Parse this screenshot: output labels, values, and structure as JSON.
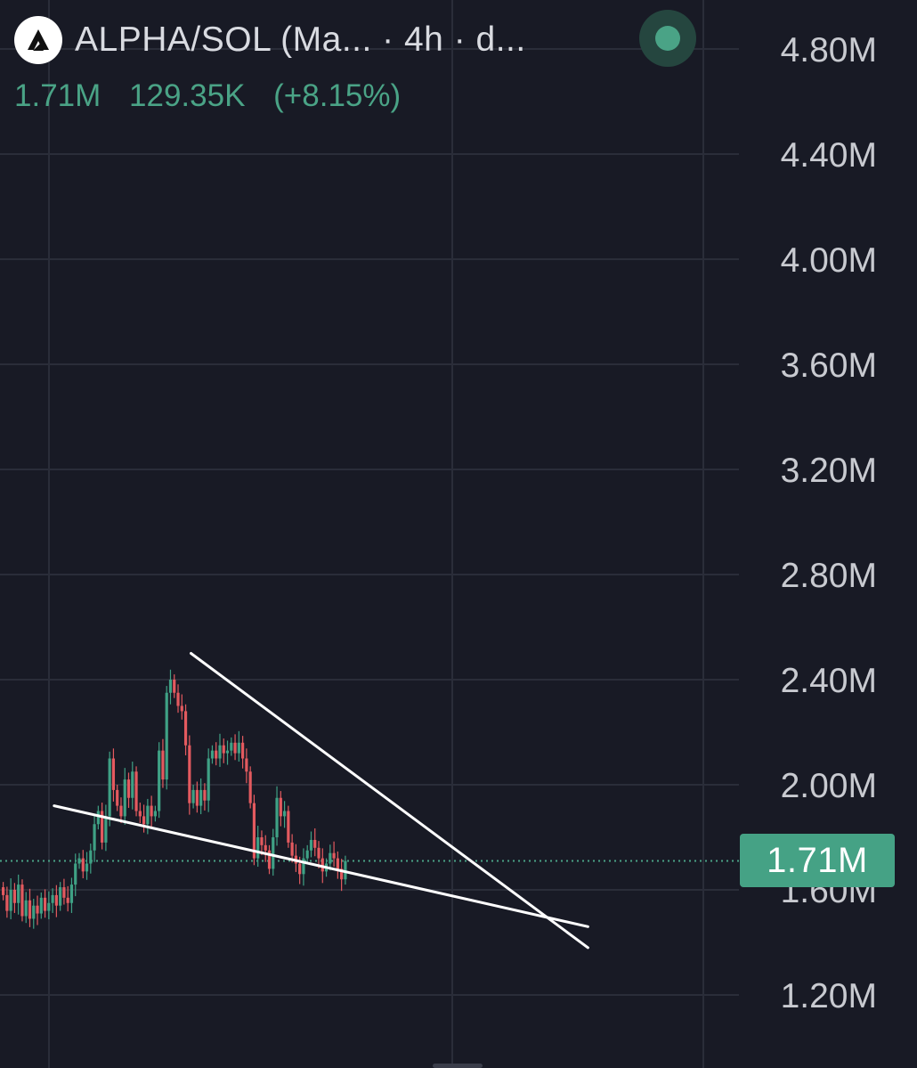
{
  "header": {
    "title": "ALPHA/SOL (Ma... · 4h · d...",
    "logo_icon": "alpha-triangle-logo",
    "status_color": "#4aa386"
  },
  "ohlc": {
    "price": "1.71M",
    "change": "129.35K",
    "change_pct": "(+8.15%)"
  },
  "price_tag": "1.71M",
  "colors": {
    "background": "#181a25",
    "up": "#3fa185",
    "down": "#e35a5f",
    "grid": "#2a2d39",
    "axis_text": "#c8cad0",
    "trendline": "#ffffff",
    "last_price_line": "#4aa386"
  },
  "chart_data": {
    "type": "candlestick",
    "timeframe": "4h",
    "y_axis": {
      "ticks": [
        4.8,
        4.4,
        4.0,
        3.6,
        3.2,
        2.8,
        2.4,
        2.0,
        1.6,
        1.2
      ],
      "tick_labels": [
        "4.80M",
        "4.40M",
        "4.00M",
        "3.60M",
        "3.20M",
        "2.80M",
        "2.40M",
        "2.00M",
        "1.60M",
        "1.20M"
      ],
      "ylim": [
        0.9,
        5.05
      ],
      "unit": "M"
    },
    "grid": true,
    "last_price": 1.71,
    "closes": [
      1.58,
      1.52,
      1.6,
      1.55,
      1.62,
      1.5,
      1.56,
      1.49,
      1.54,
      1.51,
      1.57,
      1.52,
      1.55,
      1.58,
      1.54,
      1.61,
      1.57,
      1.55,
      1.62,
      1.7,
      1.72,
      1.67,
      1.7,
      1.75,
      1.85,
      1.9,
      1.78,
      1.88,
      2.1,
      1.98,
      1.92,
      1.88,
      2.02,
      1.95,
      2.05,
      1.9,
      1.88,
      1.85,
      1.92,
      1.88,
      1.9,
      2.13,
      2.02,
      2.35,
      2.4,
      2.35,
      2.3,
      2.28,
      2.15,
      1.93,
      1.98,
      1.92,
      1.98,
      1.94,
      2.1,
      2.13,
      2.1,
      2.15,
      2.12,
      2.13,
      2.16,
      2.12,
      2.16,
      2.1,
      2.05,
      1.93,
      1.72,
      1.8,
      1.77,
      1.75,
      1.68,
      1.8,
      1.95,
      1.88,
      1.9,
      1.78,
      1.73,
      1.7,
      1.66,
      1.72,
      1.75,
      1.79,
      1.76,
      1.72,
      1.67,
      1.7,
      1.74,
      1.72,
      1.68,
      1.64,
      1.71
    ],
    "trendlines": [
      {
        "name": "upper",
        "from": {
          "bar": 39,
          "price": 2.5
        },
        "to": {
          "bar": 120,
          "price": 1.38
        }
      },
      {
        "name": "lower",
        "from": {
          "bar": 3,
          "price": 1.92
        },
        "to": {
          "bar": 120,
          "price": 1.46
        }
      }
    ]
  }
}
